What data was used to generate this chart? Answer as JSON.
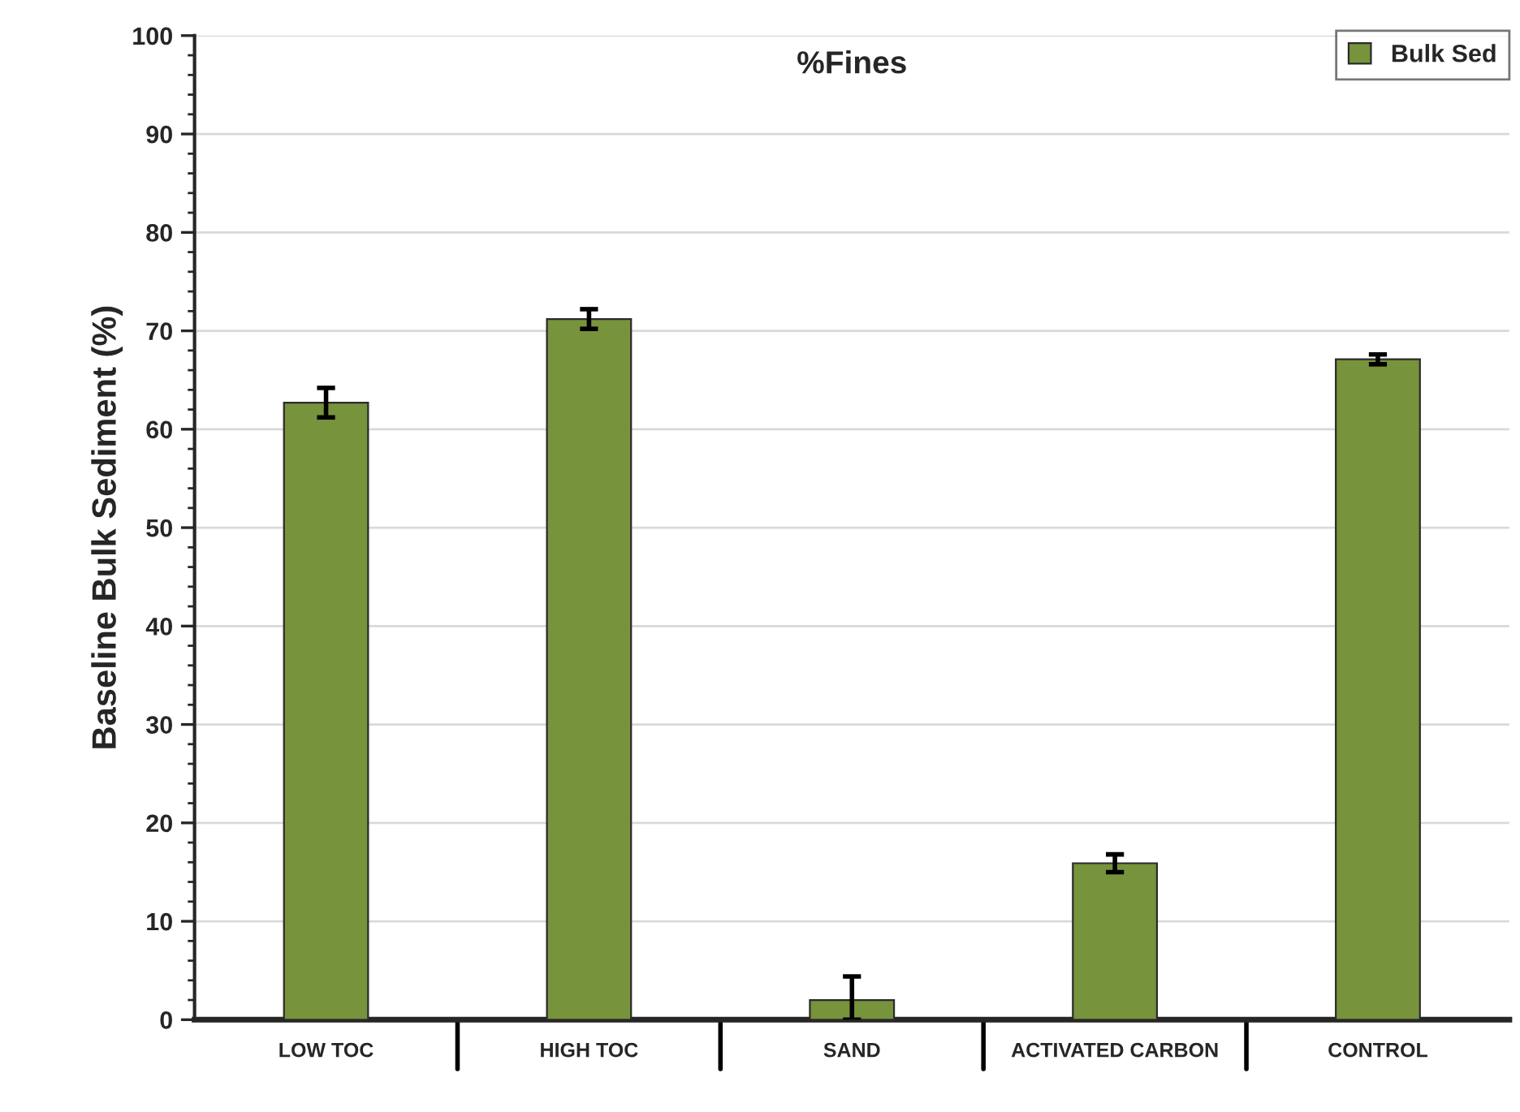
{
  "chart_data": {
    "type": "bar",
    "title": "%Fines",
    "ylabel": "Baseline Bulk Sediment (%)",
    "categories": [
      "LOW TOC",
      "HIGH TOC",
      "SAND",
      "ACTIVATED CARBON",
      "CONTROL"
    ],
    "series": [
      {
        "name": "Bulk Sed",
        "color": "#77933c",
        "values": [
          62.7,
          71.2,
          2.0,
          15.9,
          67.1
        ],
        "errors": [
          1.5,
          1.0,
          [
            0,
            4.4
          ],
          0.9,
          0.5
        ]
      }
    ],
    "ylim": [
      0,
      100
    ],
    "yticks": [
      0,
      10,
      20,
      30,
      40,
      50,
      60,
      70,
      80,
      90,
      100
    ],
    "grid": "y",
    "legend": "top right"
  }
}
